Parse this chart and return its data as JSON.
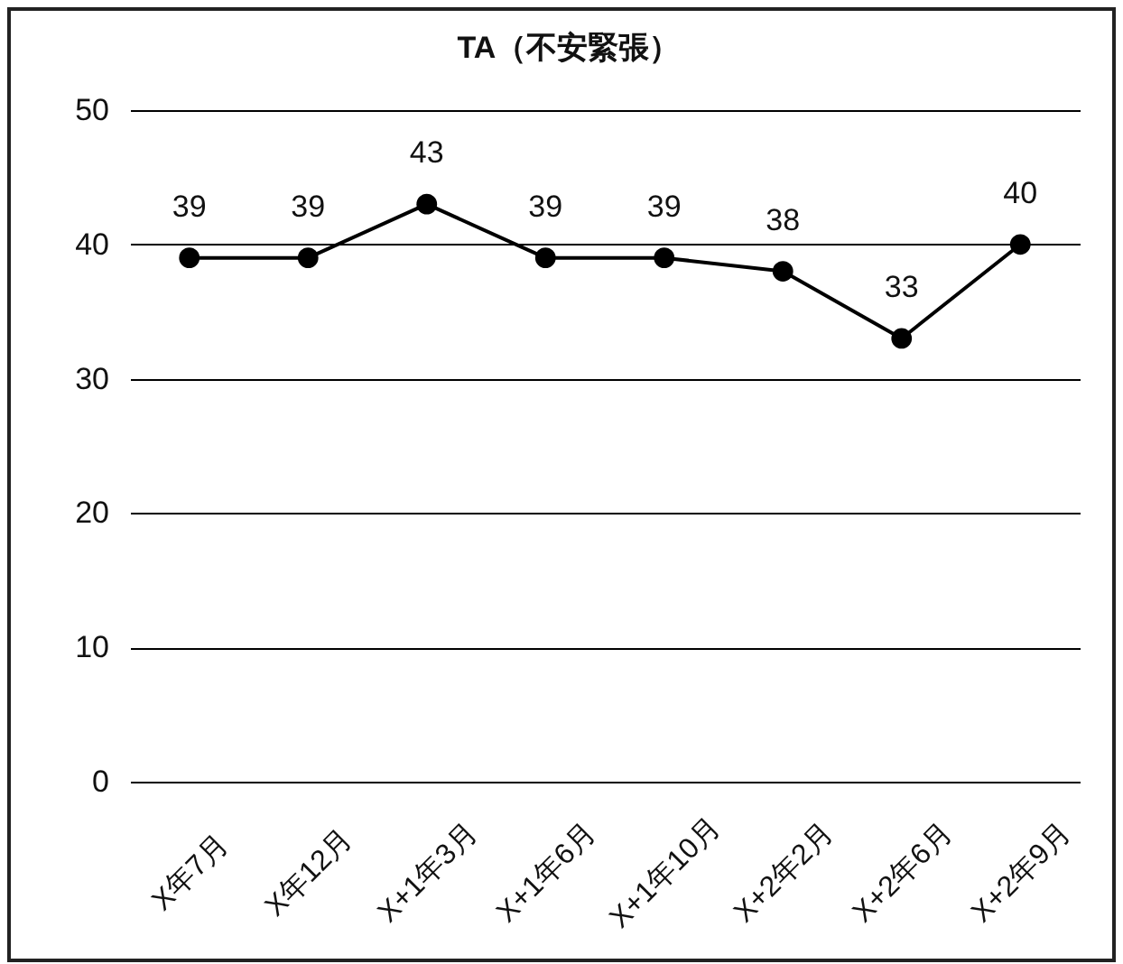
{
  "chart_data": {
    "type": "line",
    "title": "TA（不安緊張）",
    "categories": [
      "X年7月",
      "X年12月",
      "X+1年3月",
      "X+1年6月",
      "X+1年10月",
      "X+2年2月",
      "X+2年6月",
      "X+2年9月"
    ],
    "series": [
      {
        "color": "#000000",
        "values": [
          39,
          39,
          43,
          39,
          39,
          38,
          33,
          40
        ]
      }
    ],
    "ylim": [
      0,
      50
    ],
    "yticks": [
      0,
      10,
      20,
      30,
      40,
      50
    ],
    "grid": "y",
    "marker": "circle",
    "line_style": "solid",
    "data_labels": true
  }
}
